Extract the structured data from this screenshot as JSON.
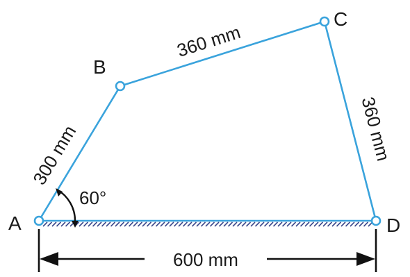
{
  "points": {
    "A": "A",
    "B": "B",
    "C": "C",
    "D": "D"
  },
  "links": {
    "AB": "300 mm",
    "BC": "360 mm",
    "CD": "360 mm",
    "AD": "600 mm"
  },
  "angle": "60°",
  "colors": {
    "link": "#3aa3dc",
    "ground_hatch": "#3c4a8c",
    "text": "#1a1a1a"
  }
}
